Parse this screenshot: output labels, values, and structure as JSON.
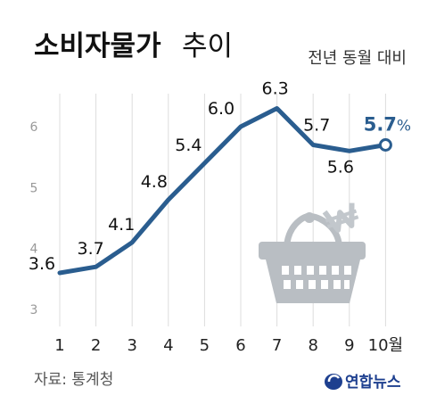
{
  "header": {
    "title_bold": "소비자물가",
    "title_light": "추이",
    "subtitle": "전년 동월 대비"
  },
  "footer": {
    "source": "자료: 통계청",
    "logo": "연합뉴스"
  },
  "colors": {
    "line": "#2a5d8f",
    "grid": "#dddddd",
    "basket": "#b9bec3",
    "won_sign": "#c2c7cc"
  },
  "icons": [
    "shopping-basket-icon",
    "won-sign-icon",
    "yonhap-logo-icon"
  ],
  "chart_data": {
    "type": "line",
    "title": "소비자물가 추이",
    "subtitle": "전년 동월 대비",
    "categories": [
      "1",
      "2",
      "3",
      "4",
      "5",
      "6",
      "7",
      "8",
      "9",
      "10월"
    ],
    "values": [
      3.6,
      3.7,
      4.1,
      4.8,
      5.4,
      6.0,
      6.3,
      5.7,
      5.6,
      5.7
    ],
    "data_labels": [
      "3.6",
      "3.7",
      "4.1",
      "4.8",
      "5.4",
      "6.0",
      "6.3",
      "5.7",
      "5.6",
      "5.7"
    ],
    "last_label_unit": "%",
    "y_ticks": [
      "3",
      "4",
      "5",
      "6"
    ],
    "ylim": [
      3,
      6.6
    ],
    "grid": "vertical",
    "legend": "none"
  }
}
